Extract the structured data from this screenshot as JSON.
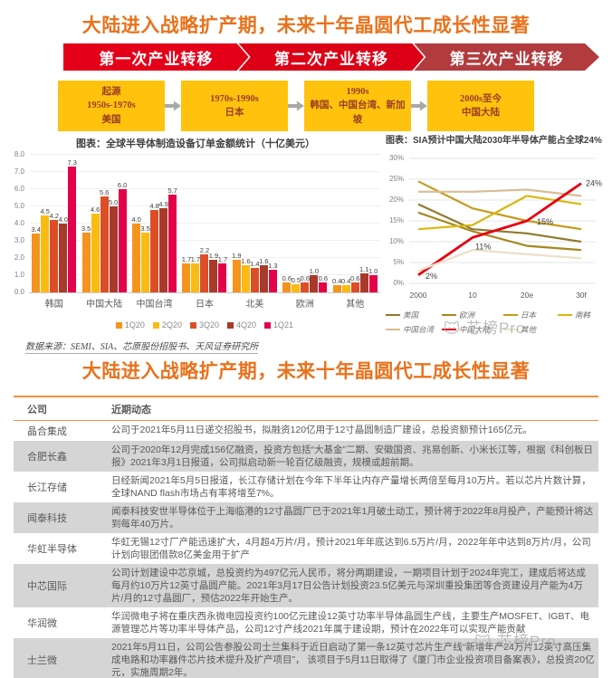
{
  "page": {
    "title": "大陆进入战略扩产期，未来十年晶圆代工成长性显著",
    "source_note": "数据来源：SEMI、SIA、芯原股份招股书、天风证券研究所",
    "watermark": "芯榜Pro"
  },
  "transfer_banner": {
    "stages": [
      "第一次产业转移",
      "第二次产业转移",
      "第三次产业转移"
    ],
    "colors": [
      "#E50019",
      "#DC0016",
      "#B23B3E"
    ]
  },
  "timeline": {
    "box_color": "#FFC30E",
    "text_color": "#9C3D23",
    "boxes": [
      {
        "lines": [
          "起源",
          "1950s-1970s",
          "美国"
        ]
      },
      {
        "lines": [
          "1970s-1990s",
          "日本"
        ]
      },
      {
        "lines": [
          "1990s",
          "韩国、中国台湾、新加坡"
        ]
      },
      {
        "lines": [
          "2000s至今",
          "中国大陆"
        ]
      }
    ]
  },
  "chart_data": [
    {
      "type": "bar",
      "title": "图表：全球半导体制造设备订单金额统计（十亿美元）",
      "categories": [
        "韩国",
        "中国大陆",
        "中国台湾",
        "日本",
        "北美",
        "欧洲",
        "其他"
      ],
      "series": [
        {
          "name": "1Q20",
          "color": "#F5941D",
          "values": [
            3.4,
            3.5,
            4.0,
            1.7,
            1.9,
            0.6,
            0.4
          ]
        },
        {
          "name": "2Q20",
          "color": "#FBBB12",
          "values": [
            4.5,
            4.6,
            3.5,
            1.7,
            1.6,
            0.5,
            0.4
          ]
        },
        {
          "name": "3Q20",
          "color": "#DD4E26",
          "values": [
            4.2,
            5.6,
            4.8,
            2.2,
            1.4,
            0.6,
            0.6
          ]
        },
        {
          "name": "4Q20",
          "color": "#A93A2B",
          "values": [
            4.0,
            5.0,
            4.9,
            1.9,
            1.6,
            1.0,
            1.1
          ]
        },
        {
          "name": "1Q21",
          "color": "#E30249",
          "values": [
            7.3,
            6.0,
            5.7,
            1.7,
            1.3,
            0.6,
            1.0
          ]
        }
      ],
      "ylim": [
        0,
        8
      ],
      "ytick_step": 1,
      "grid": true,
      "legend_position": "bottom"
    },
    {
      "type": "line",
      "title": "图表：SIA预计中国大陆2030年半导体产能占全球24%",
      "x": [
        "2000",
        "10",
        "20e",
        "30f"
      ],
      "series": [
        {
          "name": "美国",
          "color": "#8F7A2E",
          "values": [
            19,
            13,
            12,
            10
          ]
        },
        {
          "name": "欧洲",
          "color": "#A8871F",
          "values": [
            17,
            12.5,
            9,
            8
          ]
        },
        {
          "name": "日本",
          "color": "#C49C1F",
          "values": [
            24.5,
            18,
            15,
            13
          ]
        },
        {
          "name": "南韩",
          "color": "#D9B810",
          "values": [
            13,
            14,
            21,
            19
          ]
        },
        {
          "name": "中国台湾",
          "color": "#D9BD93",
          "values": [
            22,
            22,
            22.5,
            21
          ]
        },
        {
          "name": "中国大陆",
          "color": "#E60012",
          "values": [
            2,
            11,
            15,
            24
          ],
          "labels": [
            "2%",
            "11%",
            "15%",
            "24%"
          ]
        },
        {
          "name": "其他",
          "color": "#ECDFC9",
          "values": [
            3,
            8,
            7,
            6
          ]
        }
      ],
      "ylim": [
        0,
        30
      ],
      "ytick_step": 5,
      "grid": true,
      "legend_position": "bottom"
    }
  ],
  "table": {
    "headers": [
      "公司",
      "近期动态"
    ],
    "rows": [
      {
        "company": "晶合集成",
        "detail": "公司于2021年5月11日递交招股书，拟融资120亿用于12寸晶圆制造厂建设，总投资额预计165亿元。"
      },
      {
        "company": "合肥长鑫",
        "detail": "公司于2020年12月完成156亿融资，投资方包括“大基金”二期、安徽国资、兆易创新、小米长江等，根据《科创板日报》2021年3月1日报道，公司拟启动新一轮百亿级融资，规模或超前期。"
      },
      {
        "company": "长江存储",
        "detail": "日经新闻2021年5月5日报道，长江存储计划在今年下半年让内存产量增长两倍至每月10万片。若以芯片片数计算，全球NAND flash市场占有率将增至7%。"
      },
      {
        "company": "闻泰科技",
        "detail": "闻泰科技安世半导体位于上海临港的12寸晶圆厂已于2021年1月破土动工，预计将于2022年8月投产，产能预计将达到每年40万片。"
      },
      {
        "company": "华虹半导体",
        "detail": "华虹无锡12寸厂产能迅速扩大，4月超4万片/月，预计2021年年底达到6.5万片/月，2022年年中达到8万片/月，公司计划向银团借款8亿美金用于扩产"
      },
      {
        "company": "中芯国际",
        "detail": "公司计划建设中芯京城，总投资约为497亿元人民币，将分两期建设，一期项目计划于2024年完工，建成后将达成每月约10万片12英寸晶圆产能。2021年3月17日公告计划投资23.5亿美元与深圳重投集团等合资建设月产能为4万片/月的12寸晶圆厂，预估2022年开始生产。"
      },
      {
        "company": "华润微",
        "detail": "华润微电子将在重庆西永微电园投资约100亿元建设12英寸功率半导体晶圆生产线，主要生产MOSFET、IGBT、电源管理芯片等功率半导体产品，公司12寸产线2021年属于建设期，预计在2022年可以实现产能贡献"
      },
      {
        "company": "士兰微",
        "detail": "2021年5月11日，公司公告参股公司士兰集科于近日启动了第一条12英寸芯片生产线“新增年产24万片12英寸高压集成电路和功率器件芯片技术提升及扩产项目”， 该项目于5月11日取得了《厦门市企业投资项目备案表》，总投资20亿元，实施周期2年。"
      }
    ]
  }
}
